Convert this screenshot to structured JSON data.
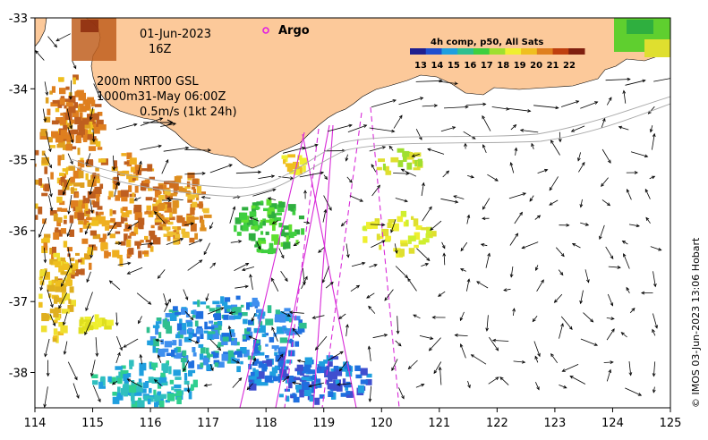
{
  "map": {
    "date": "01-Jun-2023",
    "hour": "16Z",
    "argo_label": "Argo",
    "depth_line1": "200m  NRT00 GSL",
    "depth_line2": "1000m31-May 06:00Z",
    "scale_text": "0.5m/s (1kt 24h)",
    "credit": "© IMOS 03-Jun-2023 13:06 Hobart",
    "colorbar_title": "4h comp, p50, All Sats",
    "colorbar_ticks": [
      "13",
      "14",
      "15",
      "16",
      "17",
      "18",
      "19",
      "20",
      "21",
      "22"
    ],
    "colorbar_colors": [
      "#1f1f8f",
      "#1f4fcf",
      "#1f9fdf",
      "#2fbf8f",
      "#3fcf3f",
      "#9fdf2f",
      "#efef2f",
      "#efbf1f",
      "#df7f1f",
      "#bf3f0f",
      "#7f1f0f"
    ],
    "x_ticks": [
      "114",
      "115",
      "116",
      "117",
      "118",
      "119",
      "120",
      "121",
      "122",
      "123",
      "124",
      "125"
    ],
    "y_ticks": [
      "-33",
      "-34",
      "-35",
      "-36",
      "-37",
      "-38"
    ],
    "colors": {
      "land": "#fcc99a",
      "sea": "#ffffff",
      "argo_marker": "#e11ee1",
      "track": "#d82ad8"
    }
  }
}
